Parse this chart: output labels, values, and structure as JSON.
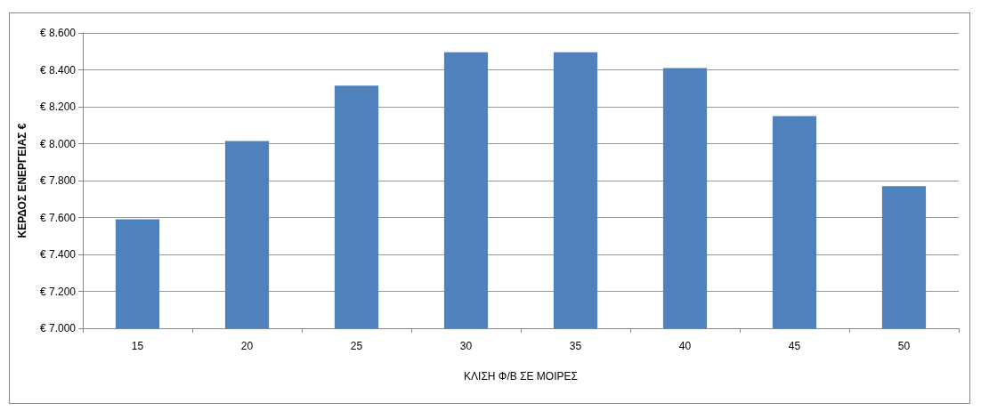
{
  "chart_data": {
    "type": "bar",
    "xlabel": "ΚΛΙΣΗ Φ/Β ΣΕ ΜΟΙΡΕΣ",
    "ylabel": "ΚΕΡΔΟΣ ΕΝΕΡΓΕΙΑΣ €",
    "categories": [
      "15",
      "20",
      "25",
      "30",
      "35",
      "40",
      "45",
      "50"
    ],
    "values": [
      7590,
      8015,
      8315,
      8495,
      8495,
      8410,
      8150,
      7770
    ],
    "color": "#4f81bd",
    "ylim": [
      7000,
      8600
    ],
    "yticks": [
      {
        "value": 7000,
        "label": "€ 7.000"
      },
      {
        "value": 7200,
        "label": "€ 7.200"
      },
      {
        "value": 7400,
        "label": "€ 7.400"
      },
      {
        "value": 7600,
        "label": "€ 7.600"
      },
      {
        "value": 7800,
        "label": "€ 7.800"
      },
      {
        "value": 8000,
        "label": "€ 8.000"
      },
      {
        "value": 8200,
        "label": "€ 8.200"
      },
      {
        "value": 8400,
        "label": "€ 8.400"
      },
      {
        "value": 8600,
        "label": "€ 8.600"
      }
    ],
    "grid": "y"
  }
}
